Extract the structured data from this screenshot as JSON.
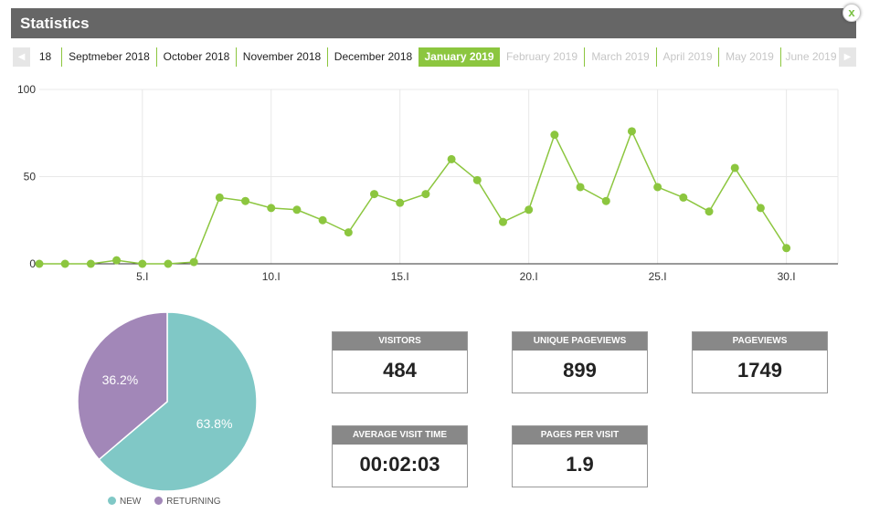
{
  "header": {
    "title": "Statistics",
    "close_label": "x"
  },
  "tabs": {
    "prev_icon": "triangle-left-icon",
    "next_icon": "triangle-right-icon",
    "items": [
      {
        "label": "18",
        "state": "normal"
      },
      {
        "label": "Septmeber 2018",
        "state": "normal"
      },
      {
        "label": "October 2018",
        "state": "normal"
      },
      {
        "label": "November 2018",
        "state": "normal"
      },
      {
        "label": "December 2018",
        "state": "normal"
      },
      {
        "label": "January 2019",
        "state": "active"
      },
      {
        "label": "February 2019",
        "state": "disabled"
      },
      {
        "label": "March 2019",
        "state": "disabled"
      },
      {
        "label": "April 2019",
        "state": "disabled"
      },
      {
        "label": "May 2019",
        "state": "disabled"
      },
      {
        "label": "June 2019",
        "state": "disabled"
      }
    ]
  },
  "colors": {
    "accent": "#8cc63f",
    "header": "#666666",
    "new": "#80c8c6",
    "returning": "#a287b8",
    "stat_label_bg": "#888888"
  },
  "chart_data": [
    {
      "type": "line",
      "x": [
        1,
        2,
        3,
        4,
        5,
        6,
        7,
        8,
        9,
        10,
        11,
        12,
        13,
        14,
        15,
        16,
        17,
        18,
        19,
        20,
        21,
        22,
        23,
        24,
        25,
        26,
        27,
        28,
        29,
        30
      ],
      "values": [
        0,
        0,
        0,
        2,
        0,
        0,
        1,
        38,
        36,
        32,
        31,
        25,
        18,
        40,
        35,
        40,
        60,
        48,
        24,
        31,
        74,
        44,
        36,
        76,
        44,
        38,
        30,
        55,
        32,
        9
      ],
      "xticks": [
        5,
        10,
        15,
        20,
        25,
        30
      ],
      "xtick_labels": [
        "5.I",
        "10.I",
        "15.I",
        "20.I",
        "25.I",
        "30.I"
      ],
      "yticks": [
        0,
        50,
        100
      ],
      "ytick_labels": [
        "0",
        "50",
        "100"
      ],
      "xlim": [
        1,
        32
      ],
      "ylim": [
        0,
        100
      ],
      "grid": true
    },
    {
      "type": "pie",
      "slices": [
        {
          "name": "NEW",
          "value": 63.8,
          "label": "63.8%"
        },
        {
          "name": "RETURNING",
          "value": 36.2,
          "label": "36.2%"
        }
      ],
      "legend_position": "bottom"
    }
  ],
  "stats": [
    {
      "label": "VISITORS",
      "value": "484"
    },
    {
      "label": "UNIQUE PAGEVIEWS",
      "value": "899"
    },
    {
      "label": "PAGEVIEWS",
      "value": "1749"
    },
    {
      "label": "AVERAGE VISIT TIME",
      "value": "00:02:03"
    },
    {
      "label": "PAGES PER VISIT",
      "value": "1.9"
    }
  ]
}
